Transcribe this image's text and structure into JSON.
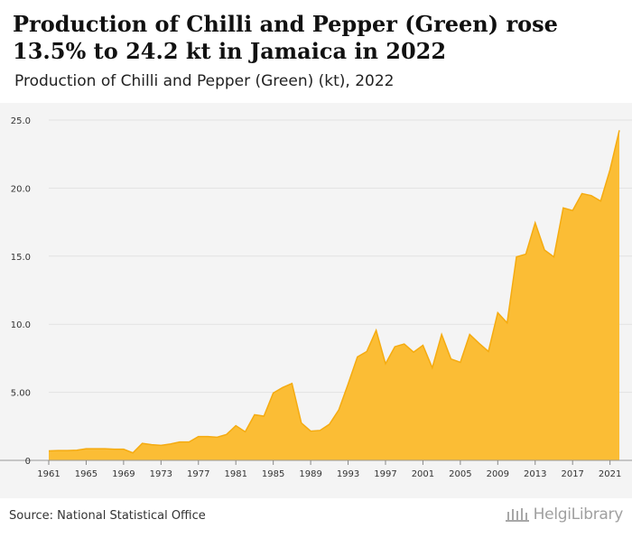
{
  "header": {
    "title": "Production of Chilli and Pepper (Green) rose 13.5% to 24.2 kt in Jamaica in 2022",
    "subtitle": "Production of Chilli and Pepper (Green) (kt), 2022"
  },
  "footer": {
    "source": "Source: National Statistical Office",
    "brand": "HelgiLibrary"
  },
  "colors": {
    "area_fill": "#fbbd35",
    "area_stroke": "#f5ab10",
    "plot_background": "#f4f4f4",
    "gridline": "#e2e2e2"
  },
  "chart_data": {
    "type": "area",
    "title": "Production of Chilli and Pepper (Green) rose 13.5% to 24.2 kt in Jamaica in 2022",
    "subtitle": "Production of Chilli and Pepper (Green) (kt), 2022",
    "xlabel": "",
    "ylabel": "",
    "xlim": [
      1961,
      2022
    ],
    "ylim": [
      0,
      25
    ],
    "grid": true,
    "legend": "none",
    "y_ticks": [
      {
        "value": 0,
        "label": "0"
      },
      {
        "value": 5,
        "label": "5.00"
      },
      {
        "value": 10,
        "label": "10.0"
      },
      {
        "value": 15,
        "label": "15.0"
      },
      {
        "value": 20,
        "label": "20.0"
      },
      {
        "value": 25,
        "label": "25.0"
      }
    ],
    "x_ticks": [
      {
        "value": 1961,
        "label": "1961"
      },
      {
        "value": 1965,
        "label": "1965"
      },
      {
        "value": 1969,
        "label": "1969"
      },
      {
        "value": 1973,
        "label": "1973"
      },
      {
        "value": 1977,
        "label": "1977"
      },
      {
        "value": 1981,
        "label": "1981"
      },
      {
        "value": 1985,
        "label": "1985"
      },
      {
        "value": 1989,
        "label": "1989"
      },
      {
        "value": 1993,
        "label": "1993"
      },
      {
        "value": 1997,
        "label": "1997"
      },
      {
        "value": 2001,
        "label": "2001"
      },
      {
        "value": 2005,
        "label": "2005"
      },
      {
        "value": 2009,
        "label": "2009"
      },
      {
        "value": 2013,
        "label": "2013"
      },
      {
        "value": 2017,
        "label": "2017"
      },
      {
        "value": 2021,
        "label": "2021"
      }
    ],
    "x": [
      1961,
      1962,
      1963,
      1964,
      1965,
      1966,
      1967,
      1968,
      1969,
      1970,
      1971,
      1972,
      1973,
      1974,
      1975,
      1976,
      1977,
      1978,
      1979,
      1980,
      1981,
      1982,
      1983,
      1984,
      1985,
      1986,
      1987,
      1988,
      1989,
      1990,
      1991,
      1992,
      1993,
      1994,
      1995,
      1996,
      1997,
      1998,
      1999,
      2000,
      2001,
      2002,
      2003,
      2004,
      2005,
      2006,
      2007,
      2008,
      2009,
      2010,
      2011,
      2012,
      2013,
      2014,
      2015,
      2016,
      2017,
      2018,
      2019,
      2020,
      2021,
      2022
    ],
    "values": [
      0.7,
      0.72,
      0.72,
      0.75,
      0.85,
      0.85,
      0.85,
      0.82,
      0.82,
      0.55,
      1.25,
      1.15,
      1.1,
      1.2,
      1.35,
      1.35,
      1.75,
      1.75,
      1.7,
      1.9,
      2.55,
      2.1,
      3.35,
      3.25,
      4.95,
      5.35,
      5.65,
      2.75,
      2.15,
      2.2,
      2.65,
      3.7,
      5.6,
      7.6,
      8.0,
      9.55,
      7.1,
      8.35,
      8.55,
      7.95,
      8.45,
      6.8,
      9.25,
      7.45,
      7.2,
      9.25,
      8.6,
      8.0,
      10.85,
      10.1,
      14.95,
      15.15,
      17.45,
      15.45,
      14.95,
      18.55,
      18.35,
      19.6,
      19.45,
      19.05,
      21.35,
      24.25
    ]
  }
}
